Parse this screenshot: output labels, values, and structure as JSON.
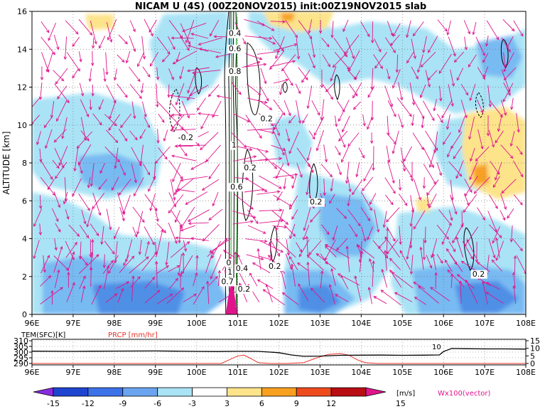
{
  "title": "NICAM U (4S) (00Z20NOV2015) init:00Z19NOV2015 slab",
  "colors": {
    "vector": "#e0158c",
    "precip": "#e8322a",
    "contour": "#000000",
    "green": "#2a9b2a"
  },
  "chart_data": [
    {
      "type": "heatmap",
      "xlabel": "",
      "ylabel": "ALTITUDE [km]",
      "xlim": [
        96,
        108
      ],
      "ylim": [
        0,
        16
      ],
      "x_ticks": [
        "96E",
        "97E",
        "98E",
        "99E",
        "100E",
        "101E",
        "102E",
        "103E",
        "104E",
        "105E",
        "106E",
        "107E",
        "108E"
      ],
      "y_ticks": [
        "0",
        "2",
        "4",
        "6",
        "8",
        "10",
        "12",
        "14",
        "16"
      ],
      "grid": "dotted",
      "contour_labels": [
        {
          "text": "0.4",
          "x": 100.78,
          "y": 14.7
        },
        {
          "text": "0.6",
          "x": 100.78,
          "y": 13.9
        },
        {
          "text": "0.8",
          "x": 100.78,
          "y": 12.7
        },
        {
          "text": "0.2",
          "x": 101.55,
          "y": 10.2
        },
        {
          "text": "-0.2",
          "x": 99.55,
          "y": 9.2
        },
        {
          "text": "1",
          "x": 100.85,
          "y": 8.8
        },
        {
          "text": "0.2",
          "x": 101.15,
          "y": 7.6
        },
        {
          "text": "0.6",
          "x": 100.82,
          "y": 6.6
        },
        {
          "text": "0.2",
          "x": 102.75,
          "y": 5.8
        },
        {
          "text": "0.2",
          "x": 101.75,
          "y": 2.4
        },
        {
          "text": "0.2",
          "x": 106.7,
          "y": 2.0
        },
        {
          "text": "0",
          "x": 100.72,
          "y": 2.6
        },
        {
          "text": "1",
          "x": 100.75,
          "y": 2.1
        },
        {
          "text": "0.4",
          "x": 100.95,
          "y": 2.3
        },
        {
          "text": "0.7",
          "x": 100.6,
          "y": 1.6
        },
        {
          "text": "0.2",
          "x": 101.0,
          "y": 1.2
        }
      ]
    },
    {
      "type": "line",
      "xlim": [
        96,
        108
      ],
      "left_axis_label": "TEM(SFC)[K]",
      "left_ticks": [
        "310",
        "305",
        "300",
        "295",
        "290"
      ],
      "right_axis_label": "PRCP [mm/hr]",
      "right_ticks": [
        "15",
        "10",
        "5",
        "0"
      ],
      "annotation": "10",
      "series": [
        {
          "name": "TEM(SFC)[K]",
          "x": [
            96,
            97,
            98,
            99,
            99.5,
            100,
            100.5,
            101,
            101.5,
            102,
            102.3,
            102.6,
            103,
            103.5,
            104,
            104.5,
            105,
            105.5,
            105.9,
            106.0,
            106.2,
            106.5,
            107,
            107.5,
            108
          ],
          "y": [
            300.8,
            300.6,
            300.9,
            301.0,
            300.8,
            300.6,
            300.5,
            300.7,
            300.6,
            299.5,
            297.5,
            296.3,
            296.5,
            297.2,
            297.3,
            297.4,
            297.2,
            297.3,
            297.5,
            300.5,
            303.2,
            303.0,
            302.8,
            302.8,
            302.6
          ]
        },
        {
          "name": "PRCP [mm/hr]",
          "x": [
            96,
            100.6,
            100.8,
            101.0,
            101.15,
            101.3,
            101.5,
            101.8,
            102.2,
            102.6,
            102.9,
            103.2,
            103.5,
            103.7,
            103.9,
            104.1,
            104.4,
            108
          ],
          "y": [
            0,
            0,
            2.5,
            5.0,
            5.5,
            3.5,
            0.5,
            0,
            0,
            0.5,
            3.5,
            6.0,
            6.5,
            5.5,
            2.5,
            0.5,
            0,
            0
          ]
        }
      ]
    }
  ],
  "colorbar": {
    "ticks": [
      "-15",
      "-12",
      "-9",
      "-6",
      "-3",
      "3",
      "6",
      "9",
      "12",
      "15"
    ],
    "unit": "[m/s]",
    "note": "Wx100(vector)"
  }
}
